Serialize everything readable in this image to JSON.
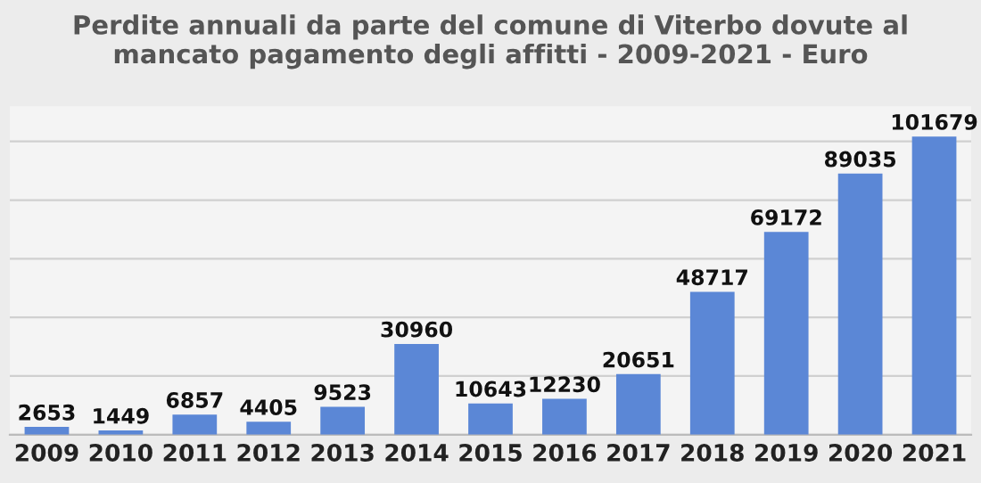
{
  "chart_data": {
    "type": "bar",
    "title": "Perdite annuali da parte del comune di Viterbo dovute al\nmancato pagamento degli affitti - 2009-2021 - Euro",
    "categories": [
      "2009",
      "2010",
      "2011",
      "2012",
      "2013",
      "2014",
      "2015",
      "2016",
      "2017",
      "2018",
      "2019",
      "2020",
      "2021"
    ],
    "values": [
      2653,
      1449,
      6857,
      4405,
      9523,
      30960,
      10643,
      12230,
      20651,
      48717,
      69172,
      89035,
      101679
    ],
    "color": "#5b87d6",
    "data_labels": true,
    "grid": "y",
    "tick_labels": "x",
    "ylim": [
      0,
      112000
    ],
    "yticks": [
      {
        "value": 0,
        "label": null
      },
      {
        "value": 20000,
        "label": null
      },
      {
        "value": 40000,
        "label": null
      },
      {
        "value": 60000,
        "label": null
      },
      {
        "value": 80000,
        "label": null
      },
      {
        "value": 100000,
        "label": null
      }
    ]
  }
}
